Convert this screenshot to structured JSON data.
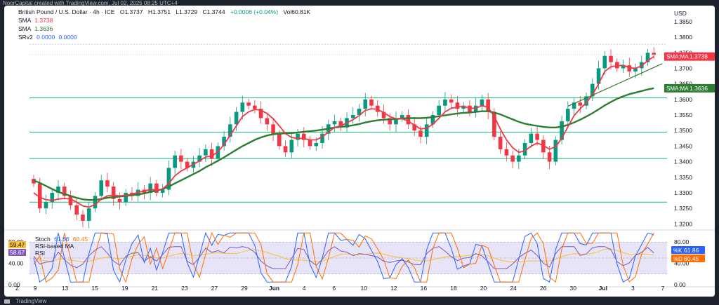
{
  "window": {
    "title": "NoorCapital created with TradingView.com, Jul 02, 2025 08:25 UTC+4",
    "footer_brand": "TradingView"
  },
  "header": {
    "symbol_line": "British Pound / U.S. Dollar · 4h · ICE",
    "ohlc": {
      "o": "O1.3737",
      "h": "H1.3751",
      "l": "L1.3729",
      "c": "C1.3744",
      "chg": "+0.0006 (+0.04%)",
      "vol": "Vol60.81K"
    },
    "sma1": {
      "label": "SMA",
      "value": "1.3738",
      "color": "#f23645"
    },
    "sma2": {
      "label": "SMA",
      "value": "1.3636",
      "color": "#2e7d32"
    },
    "srv2": {
      "label": "SRv2",
      "v1": "0.0000",
      "v2": "0.0000"
    }
  },
  "osc_legend": {
    "stoch": {
      "label": "Stoch",
      "k": "61.86",
      "d": "60.45"
    },
    "rsi": {
      "label": "RSI",
      "value": "58.67",
      "ma_label": "RSI-based MA",
      "ma_value": "59.47"
    }
  },
  "price_axis": {
    "currency": "USD",
    "ticks": [
      "1.3850",
      "1.3800",
      "1.3750",
      "1.3700",
      "1.3650",
      "1.3600",
      "1.3550",
      "1.3500",
      "1.3450",
      "1.3400",
      "1.3350",
      "1.3300",
      "1.3250",
      "1.3200"
    ],
    "ylim": [
      1.3185,
      1.387
    ],
    "tags": [
      {
        "label": "SMA:MA",
        "value": "1.3738",
        "color": "#f23645"
      },
      {
        "label": "SMA:MA",
        "value": "1.3636",
        "color": "#2e7d32"
      }
    ]
  },
  "osc_axis": {
    "ticks": [
      "80.00",
      "40.00",
      "0.00"
    ],
    "tags": [
      {
        "label": "%K",
        "value": "61.86",
        "color": "#2962ff"
      },
      {
        "label": "%D",
        "value": "60.45",
        "color": "#ff6d00"
      }
    ]
  },
  "time_axis": {
    "labels": [
      "9",
      "13",
      "15",
      "19",
      "21",
      "23",
      "27",
      "29",
      "Jun",
      "4",
      "6",
      "10",
      "12",
      "16",
      "18",
      "20",
      "24",
      "26",
      "30",
      "Jul",
      "3",
      "7"
    ]
  },
  "colors": {
    "bull": "#089981",
    "bear": "#f23645",
    "sma_fast": "#f23645",
    "sma_slow": "#2e7d32",
    "sr_line": "#26c281",
    "trend": "#2e7d32",
    "stoch_k": "#2962ff",
    "stoch_d": "#ff6d00",
    "rsi": "#7e57c2",
    "rsi_ma": "#fbc02d",
    "band": "#e8e4f7"
  },
  "chart_data": {
    "type": "line",
    "title": "British Pound / U.S. Dollar · 4h · ICE",
    "horizontal_levels": [
      1.3605,
      1.3495,
      1.341,
      1.327
    ],
    "price_series_close": [
      1.333,
      1.325,
      1.327,
      1.33,
      1.332,
      1.329,
      1.326,
      1.323,
      1.321,
      1.325,
      1.329,
      1.334,
      1.332,
      1.328,
      1.327,
      1.33,
      1.329,
      1.331,
      1.33,
      1.333,
      1.33,
      1.331,
      1.338,
      1.342,
      1.34,
      1.338,
      1.34,
      1.342,
      1.344,
      1.341,
      1.345,
      1.348,
      1.352,
      1.356,
      1.359,
      1.358,
      1.357,
      1.354,
      1.352,
      1.349,
      1.345,
      1.343,
      1.347,
      1.349,
      1.347,
      1.345,
      1.346,
      1.349,
      1.352,
      1.353,
      1.351,
      1.354,
      1.355,
      1.357,
      1.36,
      1.358,
      1.356,
      1.354,
      1.352,
      1.354,
      1.355,
      1.352,
      1.35,
      1.348,
      1.352,
      1.355,
      1.358,
      1.36,
      1.359,
      1.357,
      1.358,
      1.356,
      1.358,
      1.36,
      1.356,
      1.348,
      1.344,
      1.342,
      1.34,
      1.342,
      1.346,
      1.349,
      1.347,
      1.343,
      1.34,
      1.347,
      1.353,
      1.357,
      1.359,
      1.358,
      1.361,
      1.365,
      1.37,
      1.374,
      1.372,
      1.37,
      1.371,
      1.369,
      1.37,
      1.372,
      1.375,
      1.3744
    ],
    "series": [
      {
        "name": "SMA",
        "values": [
          1.33,
          1.3285,
          1.3278,
          1.3275,
          1.328,
          1.3282,
          1.328,
          1.327,
          1.3258,
          1.3254,
          1.3262,
          1.328,
          1.329,
          1.3292,
          1.329,
          1.3292,
          1.3295,
          1.3302,
          1.3305,
          1.3312,
          1.3308,
          1.3312,
          1.333,
          1.3355,
          1.337,
          1.338,
          1.3392,
          1.3402,
          1.3415,
          1.3418,
          1.3432,
          1.3455,
          1.3485,
          1.3515,
          1.3545,
          1.356,
          1.3568,
          1.3565,
          1.3555,
          1.3538,
          1.3515,
          1.349,
          1.3478,
          1.3475,
          1.3474,
          1.347,
          1.347,
          1.348,
          1.3495,
          1.351,
          1.3515,
          1.3525,
          1.3535,
          1.3548,
          1.3565,
          1.357,
          1.3568,
          1.3558,
          1.3545,
          1.3538,
          1.3538,
          1.353,
          1.3518,
          1.3505,
          1.3508,
          1.352,
          1.354,
          1.356,
          1.3572,
          1.3575,
          1.3578,
          1.3572,
          1.3572,
          1.358,
          1.3575,
          1.3545,
          1.3505,
          1.347,
          1.3445,
          1.343,
          1.3435,
          1.345,
          1.346,
          1.3452,
          1.344,
          1.3448,
          1.3475,
          1.3512,
          1.3548,
          1.357,
          1.359,
          1.3615,
          1.365,
          1.369,
          1.3705,
          1.3708,
          1.371,
          1.3702,
          1.37,
          1.3708,
          1.3725,
          1.3738
        ]
      },
      {
        "name": "SMA",
        "values": [
          1.334,
          1.3332,
          1.3322,
          1.3312,
          1.3303,
          1.3296,
          1.329,
          1.3284,
          1.3279,
          1.3277,
          1.3277,
          1.328,
          1.3284,
          1.3286,
          1.3288,
          1.329,
          1.3292,
          1.3295,
          1.3298,
          1.3303,
          1.3307,
          1.3312,
          1.332,
          1.333,
          1.334,
          1.335,
          1.336,
          1.337,
          1.3382,
          1.3392,
          1.3403,
          1.3414,
          1.3426,
          1.3438,
          1.345,
          1.346,
          1.347,
          1.3478,
          1.3484,
          1.3488,
          1.349,
          1.3491,
          1.3492,
          1.3494,
          1.3496,
          1.3498,
          1.35,
          1.3503,
          1.3506,
          1.351,
          1.3512,
          1.3514,
          1.3517,
          1.3521,
          1.3526,
          1.353,
          1.3533,
          1.3535,
          1.3536,
          1.3537,
          1.3539,
          1.354,
          1.354,
          1.354,
          1.3541,
          1.3543,
          1.3546,
          1.3549,
          1.3552,
          1.3555,
          1.3557,
          1.3558,
          1.356,
          1.3562,
          1.3562,
          1.3558,
          1.3552,
          1.3544,
          1.3536,
          1.3528,
          1.3522,
          1.3518,
          1.3515,
          1.3512,
          1.351,
          1.351,
          1.3513,
          1.3518,
          1.3526,
          1.3535,
          1.3545,
          1.3556,
          1.3568,
          1.3581,
          1.3592,
          1.3602,
          1.361,
          1.3617,
          1.3622,
          1.3627,
          1.3632,
          1.3636
        ]
      }
    ],
    "ylim": [
      1.3185,
      1.387
    ]
  }
}
